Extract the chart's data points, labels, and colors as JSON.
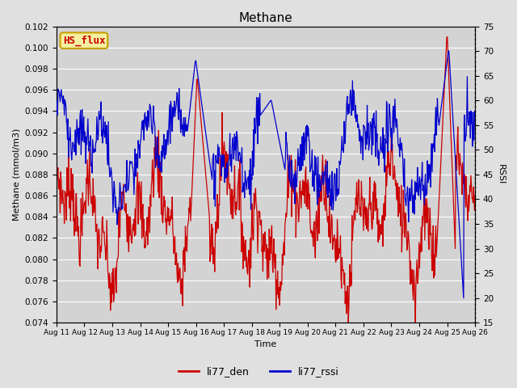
{
  "title": "Methane",
  "ylabel_left": "Methane (mmol/m3)",
  "ylabel_right": "RSSI",
  "xlabel": "Time",
  "ylim_left": [
    0.074,
    0.102
  ],
  "ylim_right": [
    15,
    75
  ],
  "yticks_left": [
    0.074,
    0.076,
    0.078,
    0.08,
    0.082,
    0.084,
    0.086,
    0.088,
    0.09,
    0.092,
    0.094,
    0.096,
    0.098,
    0.1,
    0.102
  ],
  "yticks_right": [
    15,
    20,
    25,
    30,
    35,
    40,
    45,
    50,
    55,
    60,
    65,
    70,
    75
  ],
  "xtick_labels": [
    "Aug 11",
    "Aug 12",
    "Aug 13",
    "Aug 14",
    "Aug 15",
    "Aug 16",
    "Aug 17",
    "Aug 18",
    "Aug 19",
    "Aug 20",
    "Aug 21",
    "Aug 22",
    "Aug 23",
    "Aug 24",
    "Aug 25",
    "Aug 26"
  ],
  "color_red": "#cc0000",
  "color_blue": "#0000cc",
  "legend_labels": [
    "li77_den",
    "li77_rssi"
  ],
  "fig_bg_color": "#e0e0e0",
  "axes_bg_color": "#d3d3d3",
  "grid_color": "#ffffff",
  "hs_flux_label": "HS_flux",
  "hs_flux_box_facecolor": "#f5f0a0",
  "hs_flux_box_edgecolor": "#c8a000",
  "hs_flux_text_color": "#cc0000",
  "n_points": 800,
  "line_width": 0.9
}
